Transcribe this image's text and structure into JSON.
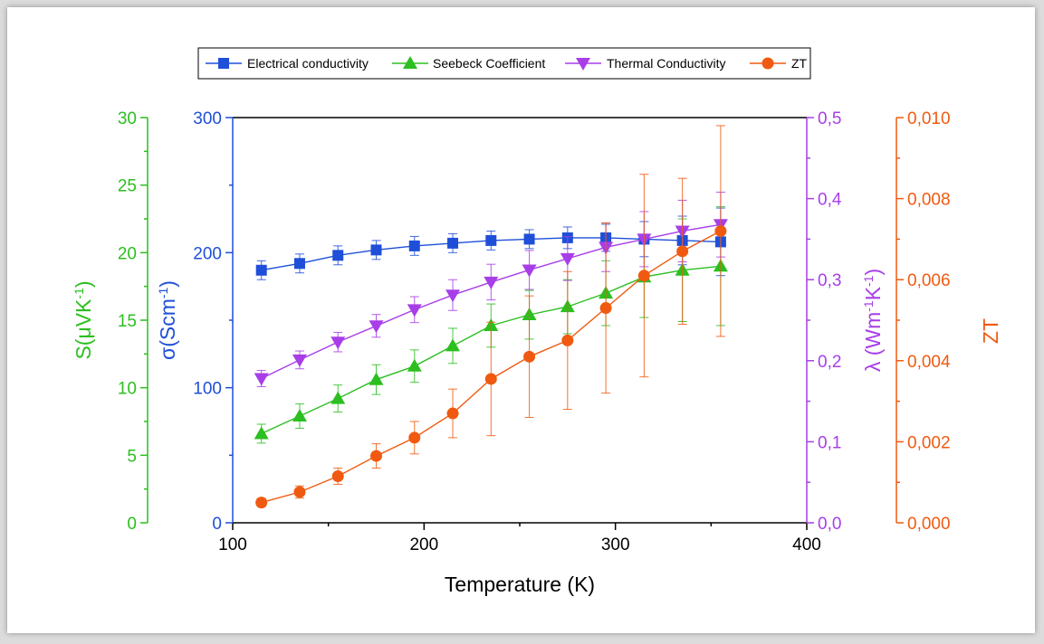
{
  "colors": {
    "conductivity": "#1f4fd8",
    "seebeck": "#2bbf1f",
    "thermal": "#a83ee8",
    "zt": "#f05a10",
    "axis": "#000000"
  },
  "chart_data": {
    "type": "line",
    "x_label": "Temperature (K)",
    "x_ticks": [
      "100",
      "200",
      "300",
      "400"
    ],
    "xlim": [
      100,
      400
    ],
    "x": [
      115,
      135,
      155,
      175,
      195,
      215,
      235,
      255,
      275,
      295,
      315,
      335,
      355
    ],
    "axes": {
      "sigma": {
        "label_base": "σ(Scm",
        "label_sup": "-1",
        "label_end": ")",
        "ylim": [
          0,
          300
        ],
        "ticks": [
          "0",
          "100",
          "200",
          "300"
        ]
      },
      "seebeck": {
        "label_base": "S(μVK",
        "label_sup": "-1",
        "label_end": ")",
        "ylim": [
          0,
          30
        ],
        "ticks": [
          "0",
          "5",
          "10",
          "15",
          "20",
          "25",
          "30"
        ]
      },
      "thermal": {
        "label_parts": [
          "λ (Wm",
          "-1",
          "K",
          "-1",
          ")"
        ],
        "ylim": [
          0,
          0.5
        ],
        "ticks": [
          "0,0",
          "0,1",
          "0,2",
          "0,3",
          "0,4",
          "0,5"
        ]
      },
      "zt": {
        "label": "ZT",
        "ylim": [
          0,
          0.01
        ],
        "ticks": [
          "0,000",
          "0,002",
          "0,004",
          "0,006",
          "0,008",
          "0,010"
        ]
      }
    },
    "series": [
      {
        "name": "Electrical conductivity",
        "axis": "sigma",
        "marker": "square",
        "values": [
          187,
          192,
          198,
          202,
          205,
          207,
          209,
          210,
          211,
          211,
          210,
          209,
          208
        ],
        "errors": [
          7,
          7,
          7,
          7,
          7,
          7,
          7,
          7,
          8,
          10,
          13,
          18,
          25
        ]
      },
      {
        "name": "Seebeck Coefficient",
        "axis": "seebeck",
        "marker": "triangle-up",
        "values": [
          6.6,
          7.9,
          9.2,
          10.6,
          11.6,
          13.1,
          14.6,
          15.4,
          16.0,
          17.0,
          18.2,
          18.7,
          19.0
        ],
        "errors": [
          0.7,
          0.9,
          1.0,
          1.1,
          1.2,
          1.3,
          1.6,
          1.8,
          2.0,
          2.4,
          3.0,
          3.8,
          4.4
        ]
      },
      {
        "name": "Thermal Conductivity",
        "axis": "thermal",
        "marker": "triangle-down",
        "values": [
          0.178,
          0.201,
          0.223,
          0.243,
          0.263,
          0.281,
          0.297,
          0.312,
          0.326,
          0.34,
          0.35,
          0.36,
          0.368
        ],
        "errors": [
          0.01,
          0.011,
          0.012,
          0.014,
          0.016,
          0.019,
          0.022,
          0.024,
          0.027,
          0.03,
          0.034,
          0.038,
          0.04
        ]
      },
      {
        "name": "ZT",
        "axis": "zt",
        "marker": "circle",
        "values": [
          0.0005,
          0.00076,
          0.00115,
          0.00165,
          0.0021,
          0.0027,
          0.00355,
          0.0041,
          0.0045,
          0.0053,
          0.0061,
          0.0067,
          0.0072
        ],
        "errors": [
          0.0001,
          0.00015,
          0.0002,
          0.0003,
          0.0004,
          0.0006,
          0.0014,
          0.0015,
          0.0017,
          0.0021,
          0.0025,
          0.0018,
          0.0026
        ]
      }
    ],
    "legend_position": "top",
    "grid": false
  }
}
